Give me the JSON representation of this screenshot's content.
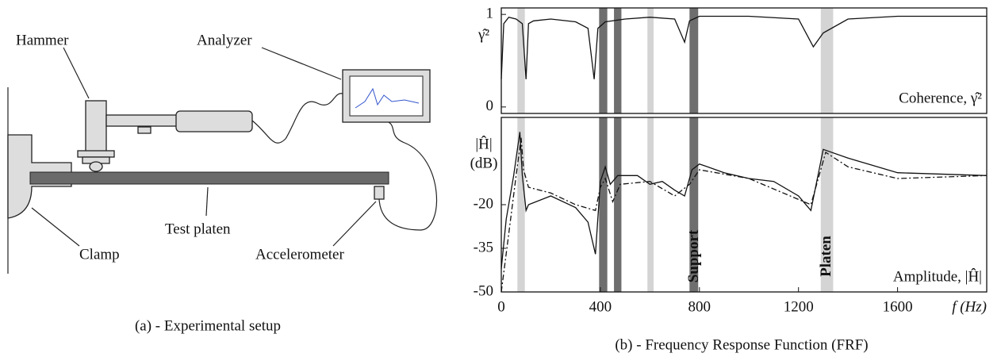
{
  "diagram": {
    "labels": [
      "Hammer",
      "Analyzer",
      "Test platen",
      "Clamp",
      "Accelerometer"
    ],
    "caption": "(a) - Experimental setup"
  },
  "caption": "(b) - Frequency Response Function (FRF)",
  "chart_data": [
    {
      "type": "line",
      "ylabel": [
        "γ̂²"
      ],
      "annotation": "Coherence, γ̂²",
      "xlim": [
        0,
        1960
      ],
      "ylim": [
        -0.07,
        1.07
      ],
      "yticks": [
        0,
        1
      ],
      "bands": [
        {
          "from": 65,
          "to": 95,
          "color": "#d4d4d4"
        },
        {
          "from": 395,
          "to": 428,
          "color": "#6e6e6e"
        },
        {
          "from": 455,
          "to": 485,
          "color": "#6e6e6e"
        },
        {
          "from": 590,
          "to": 615,
          "color": "#d4d4d4"
        },
        {
          "from": 760,
          "to": 795,
          "color": "#6e6e6e"
        },
        {
          "from": 1290,
          "to": 1340,
          "color": "#d4d4d4"
        }
      ],
      "series": [
        {
          "color": "#111",
          "dash": "solid",
          "x": [
            0,
            10,
            30,
            60,
            85,
            100,
            110,
            130,
            200,
            300,
            350,
            375,
            390,
            420,
            500,
            600,
            700,
            740,
            760,
            800,
            1000,
            1200,
            1260,
            1300,
            1400,
            1600,
            1960
          ],
          "values": [
            0.3,
            0.9,
            0.97,
            0.95,
            0.9,
            0.3,
            0.9,
            0.93,
            0.95,
            0.92,
            0.85,
            0.3,
            0.85,
            0.92,
            0.95,
            0.97,
            0.95,
            0.7,
            0.93,
            0.98,
            0.98,
            0.95,
            0.65,
            0.8,
            0.95,
            0.98,
            0.98
          ]
        }
      ]
    },
    {
      "type": "line",
      "ylabel": [
        "|Ĥ|",
        "(dB)"
      ],
      "annotation": "Amplitude, |Ĥ|",
      "xlabel": "f (Hz)",
      "xlim": [
        0,
        1960
      ],
      "ylim": [
        -50,
        10
      ],
      "xticks": [
        0,
        400,
        800,
        1200,
        1600
      ],
      "yticks": [
        -50,
        -35,
        -20
      ],
      "band_labels": [
        {
          "text": "Support",
          "x": 780
        },
        {
          "text": "Platen",
          "x": 1315
        }
      ],
      "bands": [
        {
          "from": 65,
          "to": 95,
          "color": "#d4d4d4"
        },
        {
          "from": 395,
          "to": 428,
          "color": "#6e6e6e"
        },
        {
          "from": 455,
          "to": 485,
          "color": "#6e6e6e"
        },
        {
          "from": 590,
          "to": 615,
          "color": "#d4d4d4"
        },
        {
          "from": 760,
          "to": 795,
          "color": "#6e6e6e"
        },
        {
          "from": 1290,
          "to": 1340,
          "color": "#d4d4d4"
        }
      ],
      "series": [
        {
          "color": "#111",
          "dash": "solid",
          "x": [
            0,
            20,
            50,
            75,
            85,
            100,
            110,
            200,
            300,
            350,
            380,
            400,
            420,
            440,
            470,
            550,
            600,
            650,
            700,
            740,
            770,
            800,
            900,
            1000,
            1100,
            1200,
            1250,
            1300,
            1400,
            1600,
            1960
          ],
          "values": [
            -42,
            -25,
            -10,
            5,
            -10,
            -22,
            -20,
            -17,
            -21,
            -26,
            -37,
            -12,
            -7,
            -13,
            -10,
            -10,
            -13,
            -12,
            -15,
            -17,
            -8,
            -6,
            -9,
            -11,
            -12,
            -17,
            -22,
            -1,
            -4,
            -9,
            -10
          ]
        },
        {
          "color": "#111",
          "dash": "dashdot",
          "x": [
            0,
            30,
            60,
            80,
            90,
            110,
            200,
            300,
            380,
            400,
            420,
            450,
            480,
            600,
            700,
            760,
            800,
            1000,
            1250,
            1310,
            1400,
            1600,
            1960
          ],
          "values": [
            -50,
            -30,
            -10,
            3,
            -8,
            -14,
            -16,
            -20,
            -22,
            -14,
            -11,
            -19,
            -13,
            -12,
            -17,
            -13,
            -8,
            -11,
            -20,
            -2,
            -7,
            -11,
            -10
          ]
        }
      ]
    }
  ]
}
